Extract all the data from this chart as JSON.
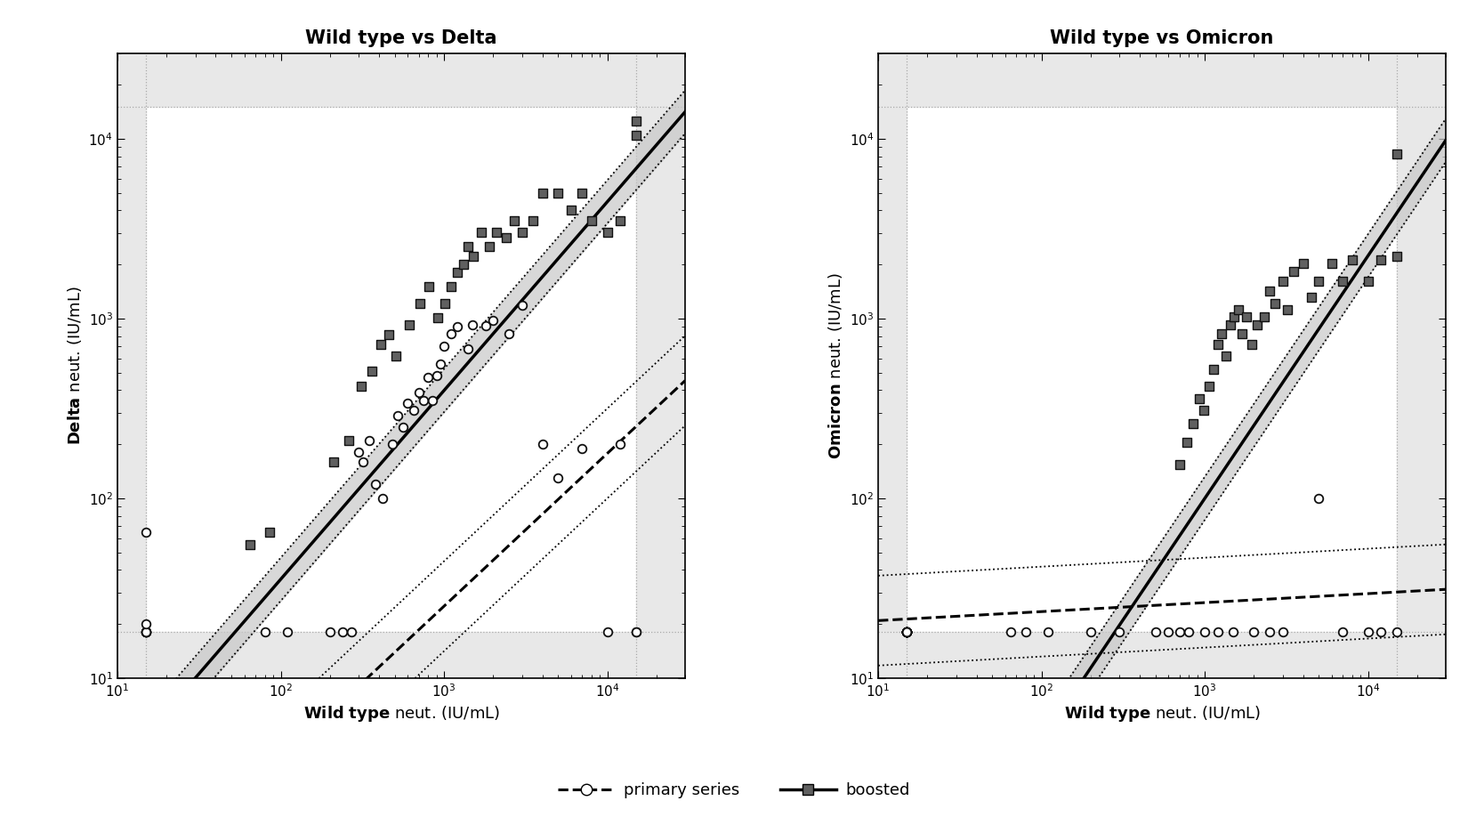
{
  "title_left": "Wild type vs Delta",
  "title_right": "Wild type vs Omicron",
  "delta_primary_x": [
    15,
    15,
    15,
    15,
    15,
    15,
    15,
    15,
    80,
    110,
    200,
    240,
    270,
    300,
    320,
    350,
    380,
    420,
    480,
    520,
    560,
    600,
    650,
    700,
    750,
    800,
    850,
    900,
    950,
    1000,
    1100,
    1200,
    1400,
    1500,
    1800,
    2000,
    2500,
    3000,
    4000,
    5000,
    7000,
    10000,
    12000,
    15000,
    15000
  ],
  "delta_primary_y": [
    18,
    18,
    18,
    18,
    18,
    18,
    20,
    65,
    18,
    18,
    18,
    18,
    18,
    180,
    160,
    210,
    120,
    100,
    200,
    290,
    250,
    340,
    310,
    390,
    350,
    470,
    350,
    480,
    560,
    700,
    820,
    900,
    680,
    920,
    910,
    980,
    820,
    1180,
    200,
    130,
    190,
    18,
    200,
    18,
    18
  ],
  "delta_boosted_x": [
    65,
    85,
    210,
    260,
    310,
    360,
    410,
    460,
    510,
    610,
    710,
    810,
    910,
    1010,
    1110,
    1210,
    1310,
    1410,
    1510,
    1700,
    1900,
    2100,
    2400,
    2700,
    3000,
    3500,
    4000,
    5000,
    6000,
    7000,
    8000,
    10000,
    12000,
    15000,
    15000
  ],
  "delta_boosted_y": [
    55,
    65,
    160,
    210,
    420,
    510,
    720,
    810,
    620,
    920,
    1210,
    1510,
    1010,
    1210,
    1510,
    1810,
    2010,
    2510,
    2210,
    3010,
    2510,
    3010,
    2810,
    3510,
    3010,
    3510,
    5010,
    5010,
    4010,
    5010,
    3510,
    3010,
    3510,
    10500,
    12500
  ],
  "omicron_primary_x": [
    15,
    15,
    15,
    15,
    15,
    15,
    15,
    15,
    15,
    15,
    15,
    15,
    15,
    15,
    15,
    15,
    15,
    15,
    15,
    65,
    80,
    110,
    200,
    300,
    500,
    600,
    700,
    800,
    1000,
    1200,
    1500,
    2000,
    2500,
    3000,
    5000,
    7000,
    10000,
    12000,
    15000
  ],
  "omicron_primary_y": [
    18,
    18,
    18,
    18,
    18,
    18,
    18,
    18,
    18,
    18,
    18,
    18,
    18,
    18,
    18,
    18,
    18,
    18,
    18,
    18,
    18,
    18,
    18,
    18,
    18,
    18,
    18,
    18,
    18,
    18,
    18,
    18,
    18,
    18,
    100,
    18,
    18,
    18,
    18
  ],
  "omicron_boosted_x": [
    700,
    780,
    850,
    920,
    990,
    1060,
    1130,
    1200,
    1270,
    1350,
    1430,
    1510,
    1600,
    1700,
    1800,
    1950,
    2100,
    2300,
    2500,
    2700,
    3000,
    3200,
    3500,
    4000,
    4500,
    5000,
    6000,
    7000,
    8000,
    10000,
    12000,
    15000,
    15000
  ],
  "omicron_boosted_y": [
    155,
    205,
    260,
    360,
    310,
    420,
    520,
    720,
    820,
    620,
    920,
    1020,
    1120,
    820,
    1020,
    720,
    920,
    1020,
    1420,
    1220,
    1620,
    1120,
    1820,
    2020,
    1320,
    1620,
    2020,
    1620,
    2120,
    1620,
    2120,
    2220,
    8200
  ],
  "fig_bg_color": "#ffffff",
  "plot_bg_color": "#ffffff",
  "gray_band_color": "#e8e8e8",
  "ci_color_boosted": "#c8c8c8",
  "ci_color_primary": "#d0d0d0",
  "primary_face": "white",
  "primary_edge": "#111111",
  "boosted_face": "#606060",
  "boosted_edge": "#111111",
  "line_color": "#000000",
  "det_line_color": "#aaaaaa",
  "det_lim_x_lo": 15,
  "det_lim_x_hi": 15000,
  "det_lim_y_lo": 18,
  "det_lim_y_hi": 15000,
  "xlim_lo": 10,
  "xlim_hi": 30000,
  "ylim_lo": 10,
  "ylim_hi": 30000,
  "delta_boosted_line_slope": 1.05,
  "delta_boosted_line_intercept": -0.55,
  "delta_primary_line_slope": 0.85,
  "delta_primary_line_intercept": -1.15,
  "omicron_boosted_line_slope": 1.35,
  "omicron_boosted_line_intercept": -2.05,
  "omicron_primary_line_slope": 0.05,
  "omicron_primary_line_intercept": 1.27,
  "title_fontsize": 15,
  "label_fontsize": 13,
  "tick_fontsize": 11,
  "legend_fontsize": 13,
  "marker_size": 48,
  "lw_solid": 2.5,
  "lw_dashed": 2.2
}
